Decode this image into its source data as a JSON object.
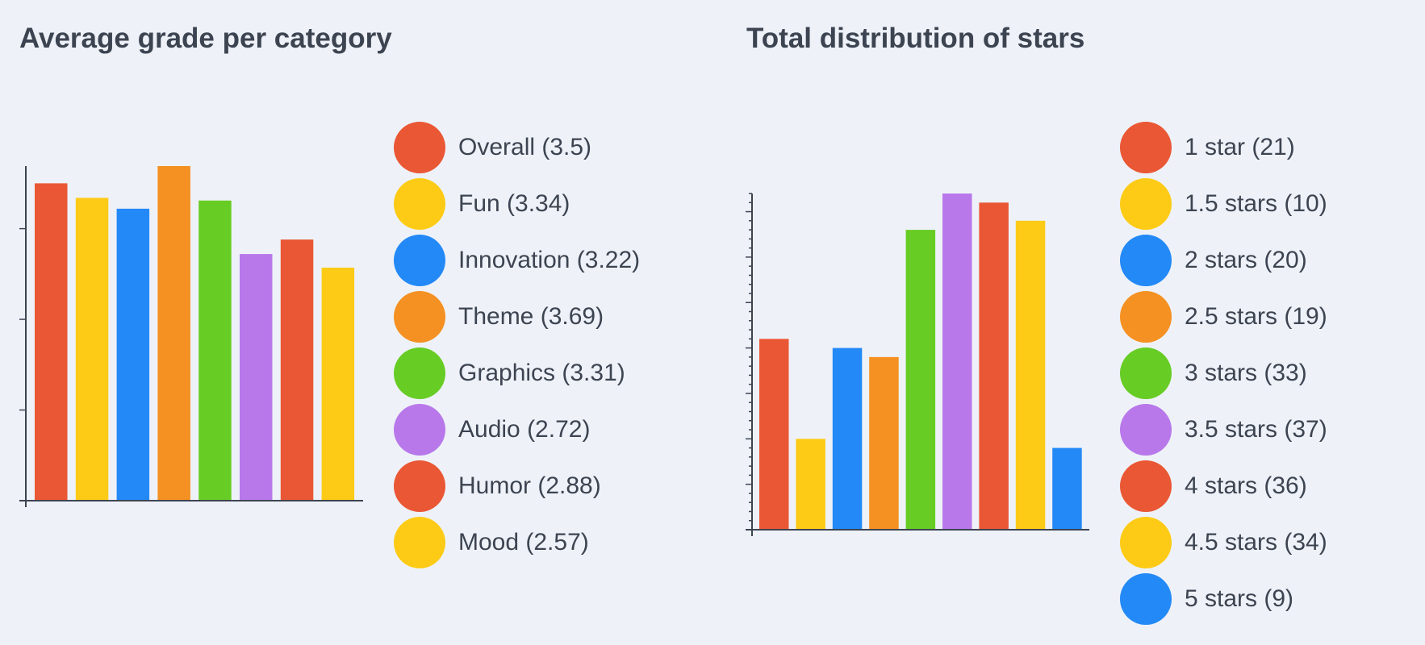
{
  "chart_data": [
    {
      "type": "bar",
      "title": "Average grade per category",
      "categories": [
        "Overall",
        "Fun",
        "Innovation",
        "Theme",
        "Graphics",
        "Audio",
        "Humor",
        "Mood"
      ],
      "values": [
        3.5,
        3.34,
        3.22,
        3.69,
        3.31,
        2.72,
        2.88,
        2.57
      ],
      "legend": [
        "Overall (3.5)",
        "Fun (3.34)",
        "Innovation (3.22)",
        "Theme (3.69)",
        "Graphics (3.31)",
        "Audio (2.72)",
        "Humor (2.88)",
        "Mood (2.57)"
      ],
      "colors": [
        "#ea5734",
        "#fdcb16",
        "#2389f6",
        "#f49122",
        "#67cc24",
        "#b878ea",
        "#ea5734",
        "#fdcb16"
      ],
      "ylim": [
        0,
        3.69
      ],
      "major_tick_step": 1,
      "grid": false,
      "legend_placement": "right"
    },
    {
      "type": "bar",
      "title": "Total distribution of stars",
      "categories": [
        "1 star",
        "1.5 stars",
        "2 stars",
        "2.5 stars",
        "3 stars",
        "3.5 stars",
        "4 stars",
        "4.5 stars",
        "5 stars"
      ],
      "values": [
        21,
        10,
        20,
        19,
        33,
        37,
        36,
        34,
        9
      ],
      "legend": [
        "1 star (21)",
        "1.5 stars (10)",
        "2 stars (20)",
        "2.5 stars (19)",
        "3 stars (33)",
        "3.5 stars (37)",
        "4 stars (36)",
        "4.5 stars (34)",
        "5 stars (9)"
      ],
      "colors": [
        "#ea5734",
        "#fdcb16",
        "#2389f6",
        "#f49122",
        "#67cc24",
        "#b878ea",
        "#ea5734",
        "#fdcb16",
        "#2389f6"
      ],
      "ylim": [
        0,
        37
      ],
      "major_tick_step": 5,
      "minor_tick_step": 1,
      "grid": false,
      "legend_placement": "right"
    }
  ]
}
